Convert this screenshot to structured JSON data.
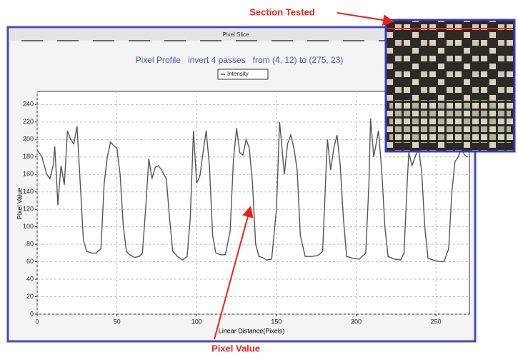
{
  "chart_data": {
    "type": "line",
    "window_title": "Pixel Slice",
    "title": "Pixel Profile   invert 4 passes   from (4, 12) to (275, 23)",
    "x_label": "Linear Distance(Pixels)",
    "y_label": "Pixel Value",
    "annotations": [
      "Section Tested",
      "Pixel Value"
    ],
    "x": [
      0,
      3,
      6,
      8,
      10,
      11,
      12,
      13,
      14,
      15,
      17,
      19,
      21,
      23,
      25,
      27,
      29,
      31,
      34,
      37,
      40,
      42,
      44,
      46,
      48,
      50,
      52,
      54,
      56,
      58,
      61,
      64,
      66,
      68,
      70,
      72,
      74,
      76,
      78,
      81,
      83,
      85,
      88,
      91,
      94,
      96,
      98,
      100,
      102,
      104,
      106,
      108,
      110,
      112,
      115,
      118,
      121,
      123,
      125,
      127,
      129,
      131,
      133,
      135,
      137,
      139,
      141,
      144,
      147,
      150,
      152,
      153,
      155,
      157,
      159,
      161,
      163,
      165,
      168,
      172,
      176,
      179,
      181,
      182,
      184,
      186,
      188,
      190,
      192,
      194,
      198,
      202,
      206,
      208,
      209,
      211,
      213,
      214,
      216,
      218,
      220,
      224,
      228,
      230,
      232,
      233,
      235,
      237,
      239,
      241,
      243,
      245,
      250,
      255,
      258,
      260,
      262,
      264,
      266,
      268,
      270
    ],
    "series": [
      {
        "name": "Intensity",
        "color": "#555555",
        "values": [
          188,
          180,
          160,
          155,
          170,
          192,
          160,
          125,
          150,
          170,
          148,
          210,
          200,
          195,
          215,
          150,
          85,
          72,
          70,
          70,
          75,
          150,
          180,
          197,
          193,
          190,
          160,
          100,
          72,
          68,
          65,
          66,
          70,
          120,
          178,
          155,
          168,
          170,
          165,
          155,
          110,
          72,
          66,
          62,
          66,
          110,
          210,
          150,
          158,
          185,
          210,
          170,
          90,
          70,
          68,
          68,
          95,
          175,
          213,
          185,
          182,
          200,
          190,
          150,
          80,
          66,
          65,
          62,
          63,
          120,
          220,
          200,
          160,
          195,
          205,
          190,
          165,
          90,
          66,
          66,
          67,
          72,
          160,
          200,
          165,
          190,
          205,
          170,
          110,
          66,
          64,
          63,
          70,
          150,
          224,
          180,
          200,
          210,
          165,
          100,
          66,
          63,
          62,
          70,
          150,
          185,
          170,
          180,
          190,
          165,
          100,
          64,
          61,
          60,
          75,
          140,
          175,
          180,
          190,
          182,
          180
        ]
      }
    ],
    "xlim": [
      0,
      271
    ],
    "ylim": [
      0,
      255
    ],
    "xticks": [
      0,
      50,
      100,
      150,
      200,
      250
    ],
    "yticks": [
      0,
      20,
      40,
      60,
      80,
      100,
      120,
      140,
      160,
      180,
      200,
      220,
      240
    ],
    "grid": true
  }
}
